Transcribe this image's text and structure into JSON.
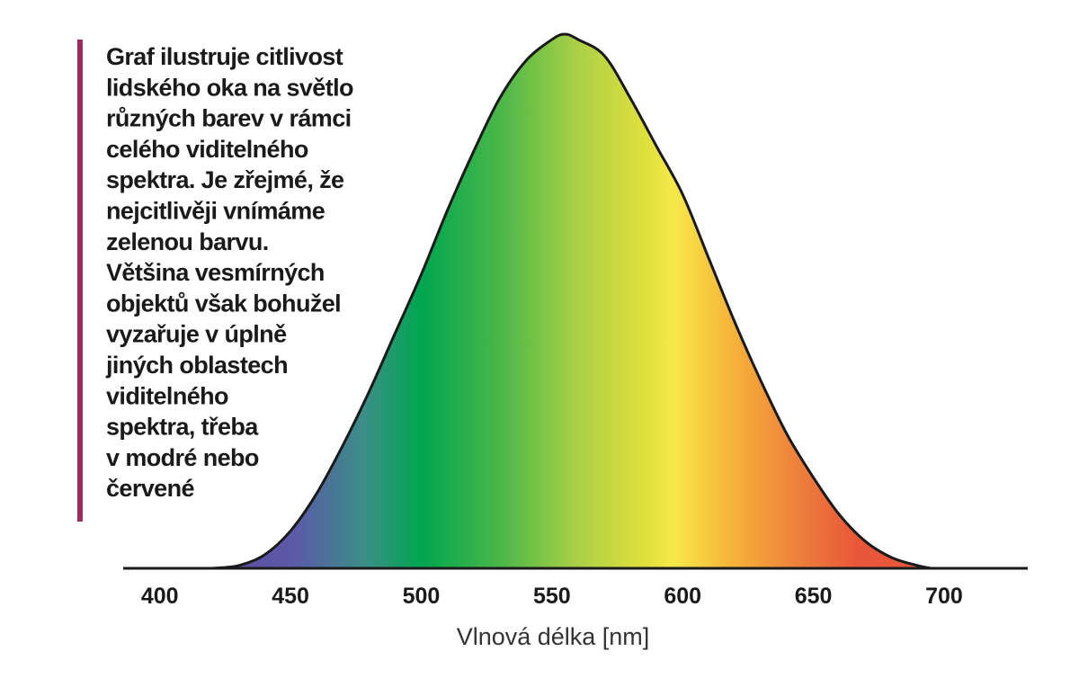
{
  "chart_data": {
    "type": "area",
    "annotation": [
      "Graf ilustruje citlivost",
      "lidského oka na světlo",
      "různých barev v rámci",
      "celého viditelného",
      "spektra. Je zřejmé, že",
      "nejcitlivěji vnímáme",
      "zelenou barvu.",
      "Většina vesmírných",
      "objektů však bohužel",
      "vyzařuje v úplně",
      "jiných oblastech",
      "viditelného",
      "spektra, třeba",
      "v modré nebo",
      "červené"
    ],
    "x_label": "Vlnová délka [nm]",
    "x": [
      420,
      430,
      440,
      450,
      460,
      470,
      480,
      490,
      500,
      510,
      520,
      530,
      540,
      550,
      555,
      560,
      570,
      580,
      590,
      600,
      610,
      620,
      630,
      640,
      650,
      660,
      670,
      680,
      690,
      695
    ],
    "values": [
      0,
      0.005,
      0.025,
      0.07,
      0.14,
      0.23,
      0.33,
      0.44,
      0.55,
      0.67,
      0.78,
      0.88,
      0.95,
      0.99,
      1.0,
      0.99,
      0.96,
      0.88,
      0.79,
      0.7,
      0.58,
      0.46,
      0.35,
      0.25,
      0.17,
      0.1,
      0.05,
      0.02,
      0.005,
      0
    ],
    "xlim": [
      386,
      732
    ],
    "ylim": [
      0,
      1
    ],
    "xticks": [
      400,
      450,
      500,
      550,
      600,
      650,
      700
    ],
    "line_color": "#1a1a1a"
  }
}
